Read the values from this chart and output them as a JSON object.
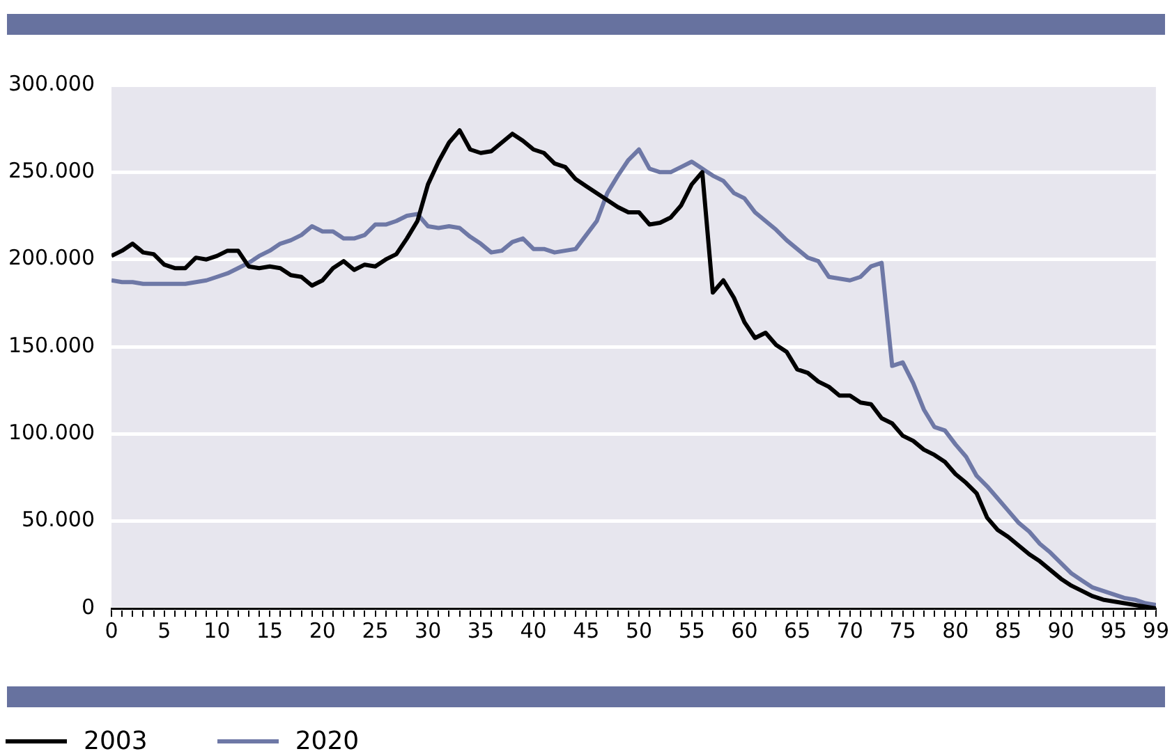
{
  "chart_data": {
    "type": "line",
    "x": [
      0,
      1,
      2,
      3,
      4,
      5,
      6,
      7,
      8,
      9,
      10,
      11,
      12,
      13,
      14,
      15,
      16,
      17,
      18,
      19,
      20,
      21,
      22,
      23,
      24,
      25,
      26,
      27,
      28,
      29,
      30,
      31,
      32,
      33,
      34,
      35,
      36,
      37,
      38,
      39,
      40,
      41,
      42,
      43,
      44,
      45,
      46,
      47,
      48,
      49,
      50,
      51,
      52,
      53,
      54,
      55,
      56,
      57,
      58,
      59,
      60,
      61,
      62,
      63,
      64,
      65,
      66,
      67,
      68,
      69,
      70,
      71,
      72,
      73,
      74,
      75,
      76,
      77,
      78,
      79,
      80,
      81,
      82,
      83,
      84,
      85,
      86,
      87,
      88,
      89,
      90,
      91,
      92,
      93,
      94,
      95,
      96,
      97,
      98,
      99
    ],
    "series": [
      {
        "name": "2003",
        "color": "#000000",
        "values": [
          202000,
          205000,
          209000,
          204000,
          203000,
          197000,
          195000,
          195000,
          201000,
          200000,
          202000,
          205000,
          205000,
          196000,
          195000,
          196000,
          195000,
          191000,
          190000,
          185000,
          188000,
          195000,
          199000,
          194000,
          197000,
          196000,
          200000,
          203000,
          212000,
          222000,
          243000,
          256000,
          267000,
          274000,
          263000,
          261000,
          262000,
          267000,
          272000,
          268000,
          263000,
          261000,
          255000,
          253000,
          246000,
          242000,
          238000,
          234000,
          230000,
          227000,
          227000,
          220000,
          221000,
          224000,
          231000,
          243000,
          250000,
          181000,
          188000,
          178000,
          164000,
          155000,
          158000,
          151000,
          147000,
          137000,
          135000,
          130000,
          127000,
          122000,
          122000,
          118000,
          117000,
          109000,
          106000,
          99000,
          96000,
          91000,
          88000,
          84000,
          77000,
          72000,
          66000,
          52000,
          45000,
          41000,
          36000,
          31000,
          27000,
          22000,
          17000,
          13000,
          10000,
          7000,
          5000,
          4000,
          3000,
          2000,
          1000,
          0
        ]
      },
      {
        "name": "2020",
        "color": "#6e78a6",
        "values": [
          188000,
          187000,
          187000,
          186000,
          186000,
          186000,
          186000,
          186000,
          187000,
          188000,
          190000,
          192000,
          195000,
          198000,
          202000,
          205000,
          209000,
          211000,
          214000,
          219000,
          216000,
          216000,
          212000,
          212000,
          214000,
          220000,
          220000,
          222000,
          225000,
          226000,
          219000,
          218000,
          219000,
          218000,
          213000,
          209000,
          204000,
          205000,
          210000,
          212000,
          206000,
          206000,
          204000,
          205000,
          206000,
          214000,
          222000,
          238000,
          248000,
          257000,
          263000,
          252000,
          250000,
          250000,
          253000,
          256000,
          252000,
          248000,
          245000,
          238000,
          235000,
          227000,
          222000,
          217000,
          211000,
          206000,
          201000,
          199000,
          190000,
          189000,
          188000,
          190000,
          196000,
          198000,
          139000,
          141000,
          129000,
          114000,
          104000,
          102000,
          94000,
          87000,
          76000,
          70000,
          63000,
          56000,
          49000,
          44000,
          37000,
          32000,
          26000,
          20000,
          16000,
          12000,
          10000,
          8000,
          6000,
          5000,
          3000,
          2000
        ]
      }
    ],
    "xlim": [
      0,
      99
    ],
    "xticks": [
      0,
      {
        "value": 1,
        "label": null
      },
      {
        "value": 2,
        "label": null
      },
      {
        "value": 3,
        "label": null
      },
      {
        "value": 4,
        "label": null
      },
      5,
      {
        "value": 6,
        "label": null
      },
      {
        "value": 7,
        "label": null
      },
      {
        "value": 8,
        "label": null
      },
      {
        "value": 9,
        "label": null
      },
      10,
      {
        "value": 11,
        "label": null
      },
      {
        "value": 12,
        "label": null
      },
      {
        "value": 13,
        "label": null
      },
      {
        "value": 14,
        "label": null
      },
      15,
      {
        "value": 16,
        "label": null
      },
      {
        "value": 17,
        "label": null
      },
      {
        "value": 18,
        "label": null
      },
      {
        "value": 19,
        "label": null
      },
      20,
      {
        "value": 21,
        "label": null
      },
      {
        "value": 22,
        "label": null
      },
      {
        "value": 23,
        "label": null
      },
      {
        "value": 24,
        "label": null
      },
      25,
      {
        "value": 26,
        "label": null
      },
      {
        "value": 27,
        "label": null
      },
      {
        "value": 28,
        "label": null
      },
      {
        "value": 29,
        "label": null
      },
      30,
      {
        "value": 31,
        "label": null
      },
      {
        "value": 32,
        "label": null
      },
      {
        "value": 33,
        "label": null
      },
      {
        "value": 34,
        "label": null
      },
      35,
      {
        "value": 36,
        "label": null
      },
      {
        "value": 37,
        "label": null
      },
      {
        "value": 38,
        "label": null
      },
      {
        "value": 39,
        "label": null
      },
      40,
      {
        "value": 41,
        "label": null
      },
      {
        "value": 42,
        "label": null
      },
      {
        "value": 43,
        "label": null
      },
      {
        "value": 44,
        "label": null
      },
      45,
      {
        "value": 46,
        "label": null
      },
      {
        "value": 47,
        "label": null
      },
      {
        "value": 48,
        "label": null
      },
      {
        "value": 49,
        "label": null
      },
      50,
      {
        "value": 51,
        "label": null
      },
      {
        "value": 52,
        "label": null
      },
      {
        "value": 53,
        "label": null
      },
      {
        "value": 54,
        "label": null
      },
      55,
      {
        "value": 56,
        "label": null
      },
      {
        "value": 57,
        "label": null
      },
      {
        "value": 58,
        "label": null
      },
      {
        "value": 59,
        "label": null
      },
      60,
      {
        "value": 61,
        "label": null
      },
      {
        "value": 62,
        "label": null
      },
      {
        "value": 63,
        "label": null
      },
      {
        "value": 64,
        "label": null
      },
      65,
      {
        "value": 66,
        "label": null
      },
      {
        "value": 67,
        "label": null
      },
      {
        "value": 68,
        "label": null
      },
      {
        "value": 69,
        "label": null
      },
      70,
      {
        "value": 71,
        "label": null
      },
      {
        "value": 72,
        "label": null
      },
      {
        "value": 73,
        "label": null
      },
      {
        "value": 74,
        "label": null
      },
      75,
      {
        "value": 76,
        "label": null
      },
      {
        "value": 77,
        "label": null
      },
      {
        "value": 78,
        "label": null
      },
      {
        "value": 79,
        "label": null
      },
      80,
      {
        "value": 81,
        "label": null
      },
      {
        "value": 82,
        "label": null
      },
      {
        "value": 83,
        "label": null
      },
      {
        "value": 84,
        "label": null
      },
      85,
      {
        "value": 86,
        "label": null
      },
      {
        "value": 87,
        "label": null
      },
      {
        "value": 88,
        "label": null
      },
      {
        "value": 89,
        "label": null
      },
      90,
      {
        "value": 91,
        "label": null
      },
      {
        "value": 92,
        "label": null
      },
      {
        "value": 93,
        "label": null
      },
      {
        "value": 94,
        "label": null
      },
      95,
      {
        "value": 96,
        "label": null
      },
      {
        "value": 97,
        "label": null
      },
      {
        "value": 98,
        "label": null
      },
      99
    ],
    "ylim": [
      0,
      300000
    ],
    "yticks": [
      0,
      {
        "value": 50000,
        "label": "50.000"
      },
      {
        "value": 100000,
        "label": "100.000"
      },
      {
        "value": 150000,
        "label": "150.000"
      },
      {
        "value": 200000,
        "label": "200.000"
      },
      {
        "value": 250000,
        "label": "250.000"
      },
      {
        "value": 300000,
        "label": "300.000"
      }
    ],
    "grid": "y",
    "legend": "bottom left",
    "marker": "none"
  }
}
